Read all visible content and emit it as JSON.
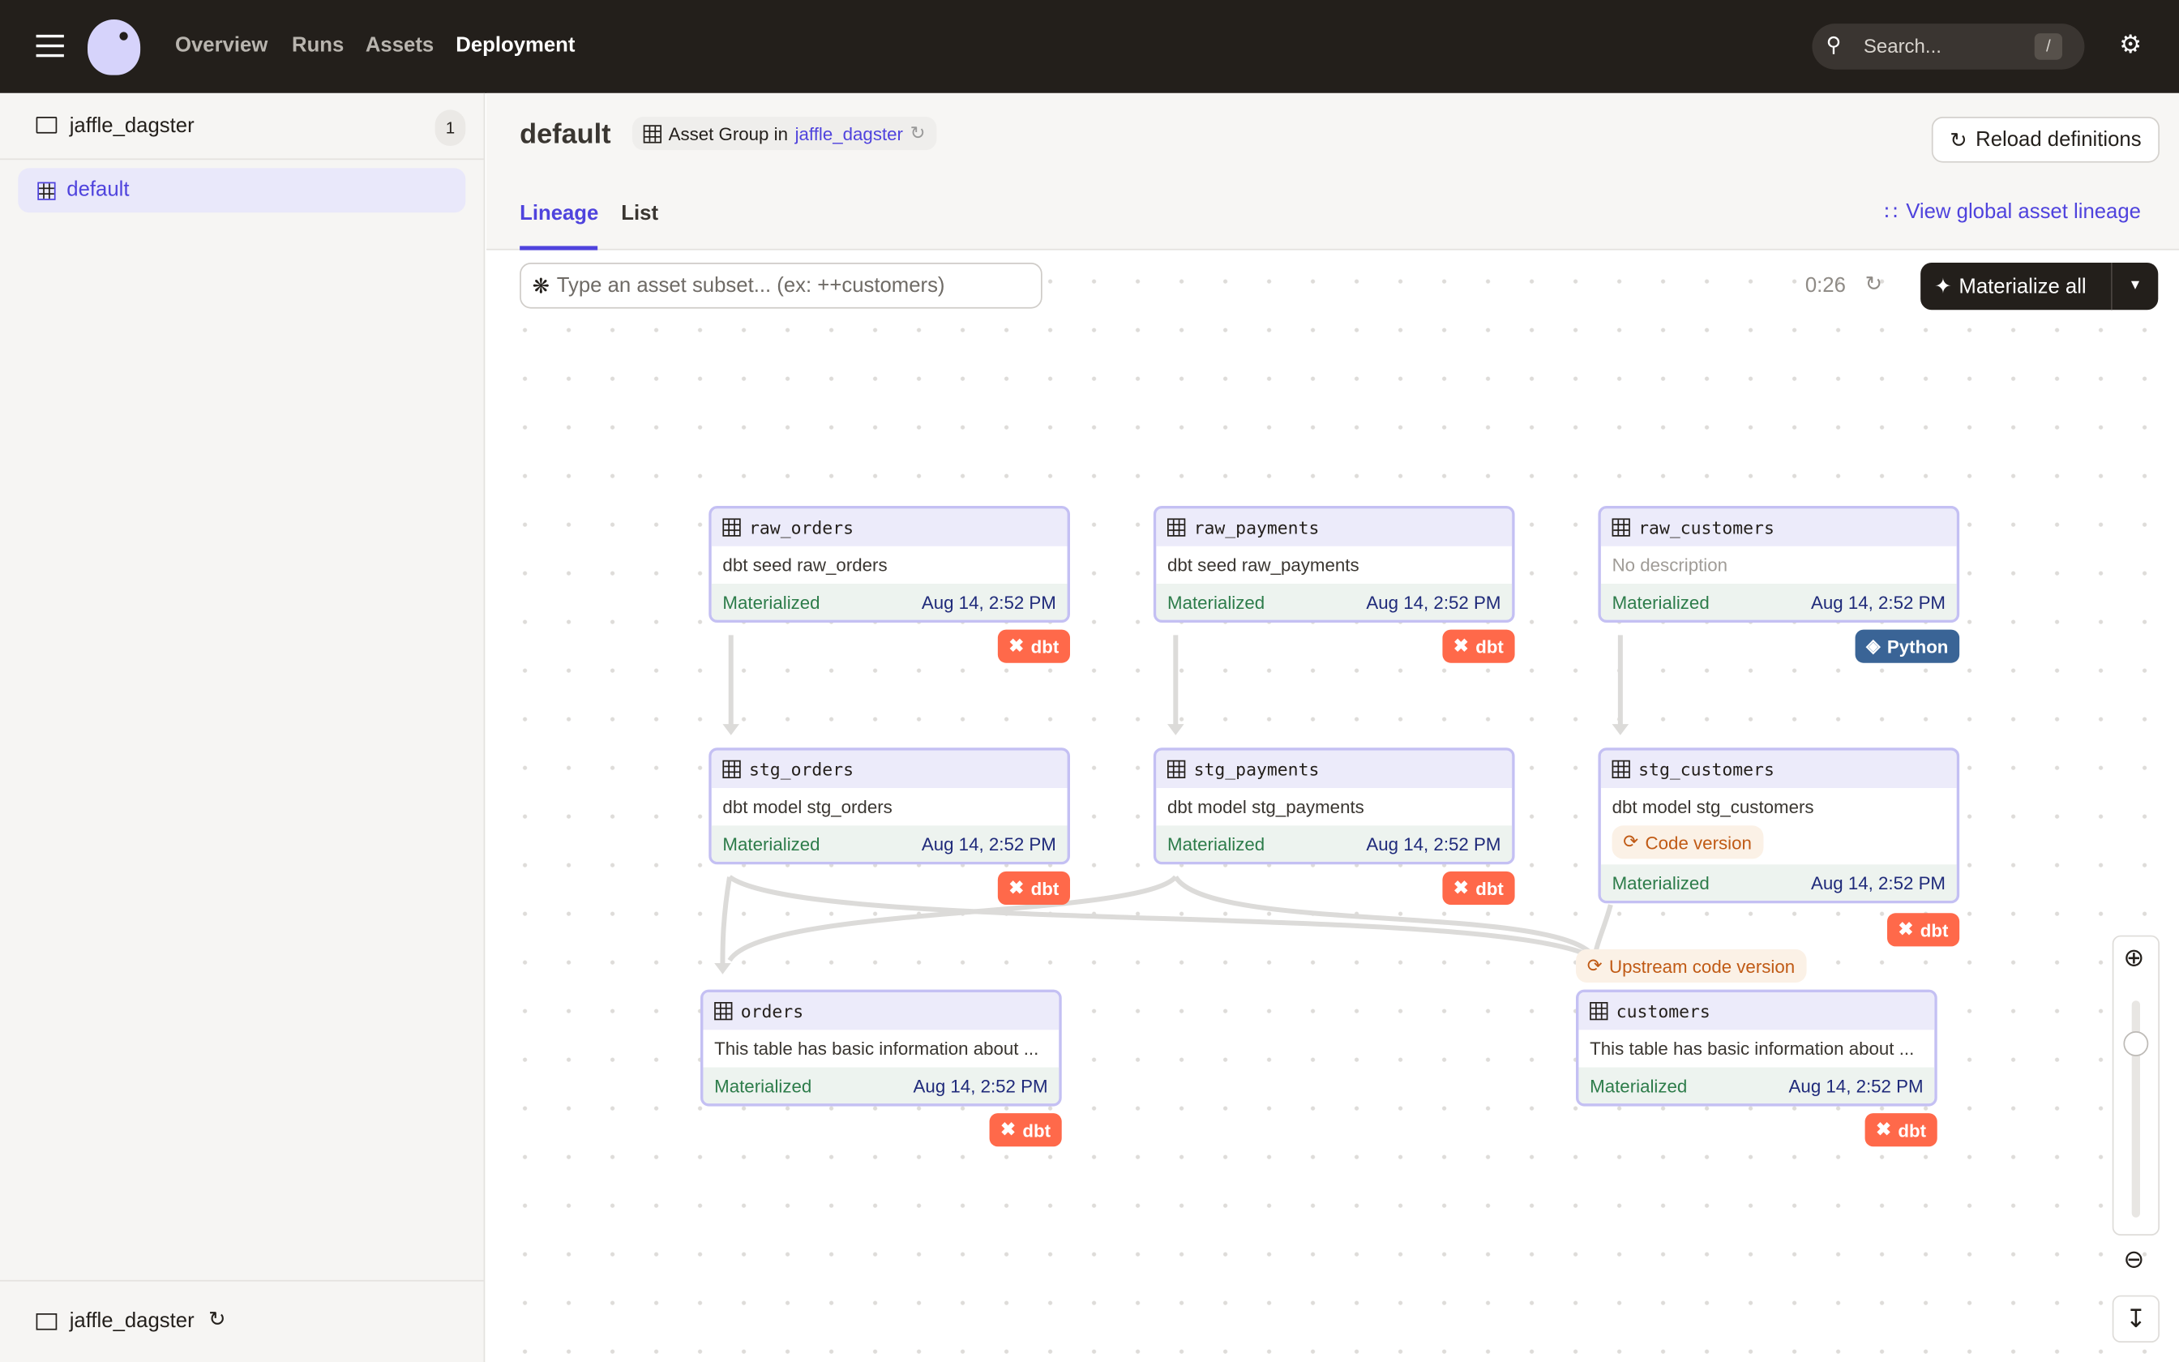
{
  "topbar": {
    "nav": [
      "Overview",
      "Runs",
      "Assets",
      "Deployment"
    ],
    "active": "Deployment",
    "search_placeholder": "Search...",
    "search_shortcut": "/"
  },
  "sidebar": {
    "location": "jaffle_dagster",
    "location_count": "1",
    "groups": [
      {
        "label": "default",
        "selected": true
      }
    ],
    "footer_location": "jaffle_dagster"
  },
  "header": {
    "title": "default",
    "subtitle_prefix": "Asset Group in",
    "subtitle_link": "jaffle_dagster",
    "reload_label": "Reload definitions",
    "global_lineage_label": "View global asset lineage"
  },
  "tabs": [
    {
      "label": "Lineage",
      "active": true
    },
    {
      "label": "List",
      "active": false
    }
  ],
  "toolbar": {
    "filter_placeholder": "Type an asset subset... (ex: ++customers)",
    "timer": "0:26",
    "materialize_label": "Materialize all"
  },
  "nodes": [
    {
      "name": "raw_orders",
      "description": "dbt seed raw_orders",
      "status": "Materialized",
      "time": "Aug 14, 2:52 PM",
      "kind": "dbt"
    },
    {
      "name": "raw_payments",
      "description": "dbt seed raw_payments",
      "status": "Materialized",
      "time": "Aug 14, 2:52 PM",
      "kind": "dbt"
    },
    {
      "name": "raw_customers",
      "description": "No description",
      "status": "Materialized",
      "time": "Aug 14, 2:52 PM",
      "kind": "Python"
    },
    {
      "name": "stg_orders",
      "description": "dbt model stg_orders",
      "status": "Materialized",
      "time": "Aug 14, 2:52 PM",
      "kind": "dbt"
    },
    {
      "name": "stg_payments",
      "description": "dbt model stg_payments",
      "status": "Materialized",
      "time": "Aug 14, 2:52 PM",
      "kind": "dbt"
    },
    {
      "name": "stg_customers",
      "description": "dbt model stg_customers",
      "chip": "Code version",
      "status": "Materialized",
      "time": "Aug 14, 2:52 PM",
      "kind": "dbt"
    },
    {
      "name": "orders",
      "description": "This table has basic information about ...",
      "status": "Materialized",
      "time": "Aug 14, 2:52 PM",
      "kind": "dbt"
    },
    {
      "name": "customers",
      "description": "This table has basic information about ...",
      "status": "Materialized",
      "time": "Aug 14, 2:52 PM",
      "kind": "dbt"
    }
  ],
  "upstream_chip": "Upstream code version",
  "colors": {
    "accent": "#4f43dd",
    "dbt": "#ff694a",
    "python": "#3a6496",
    "topbar": "#231f1b"
  }
}
